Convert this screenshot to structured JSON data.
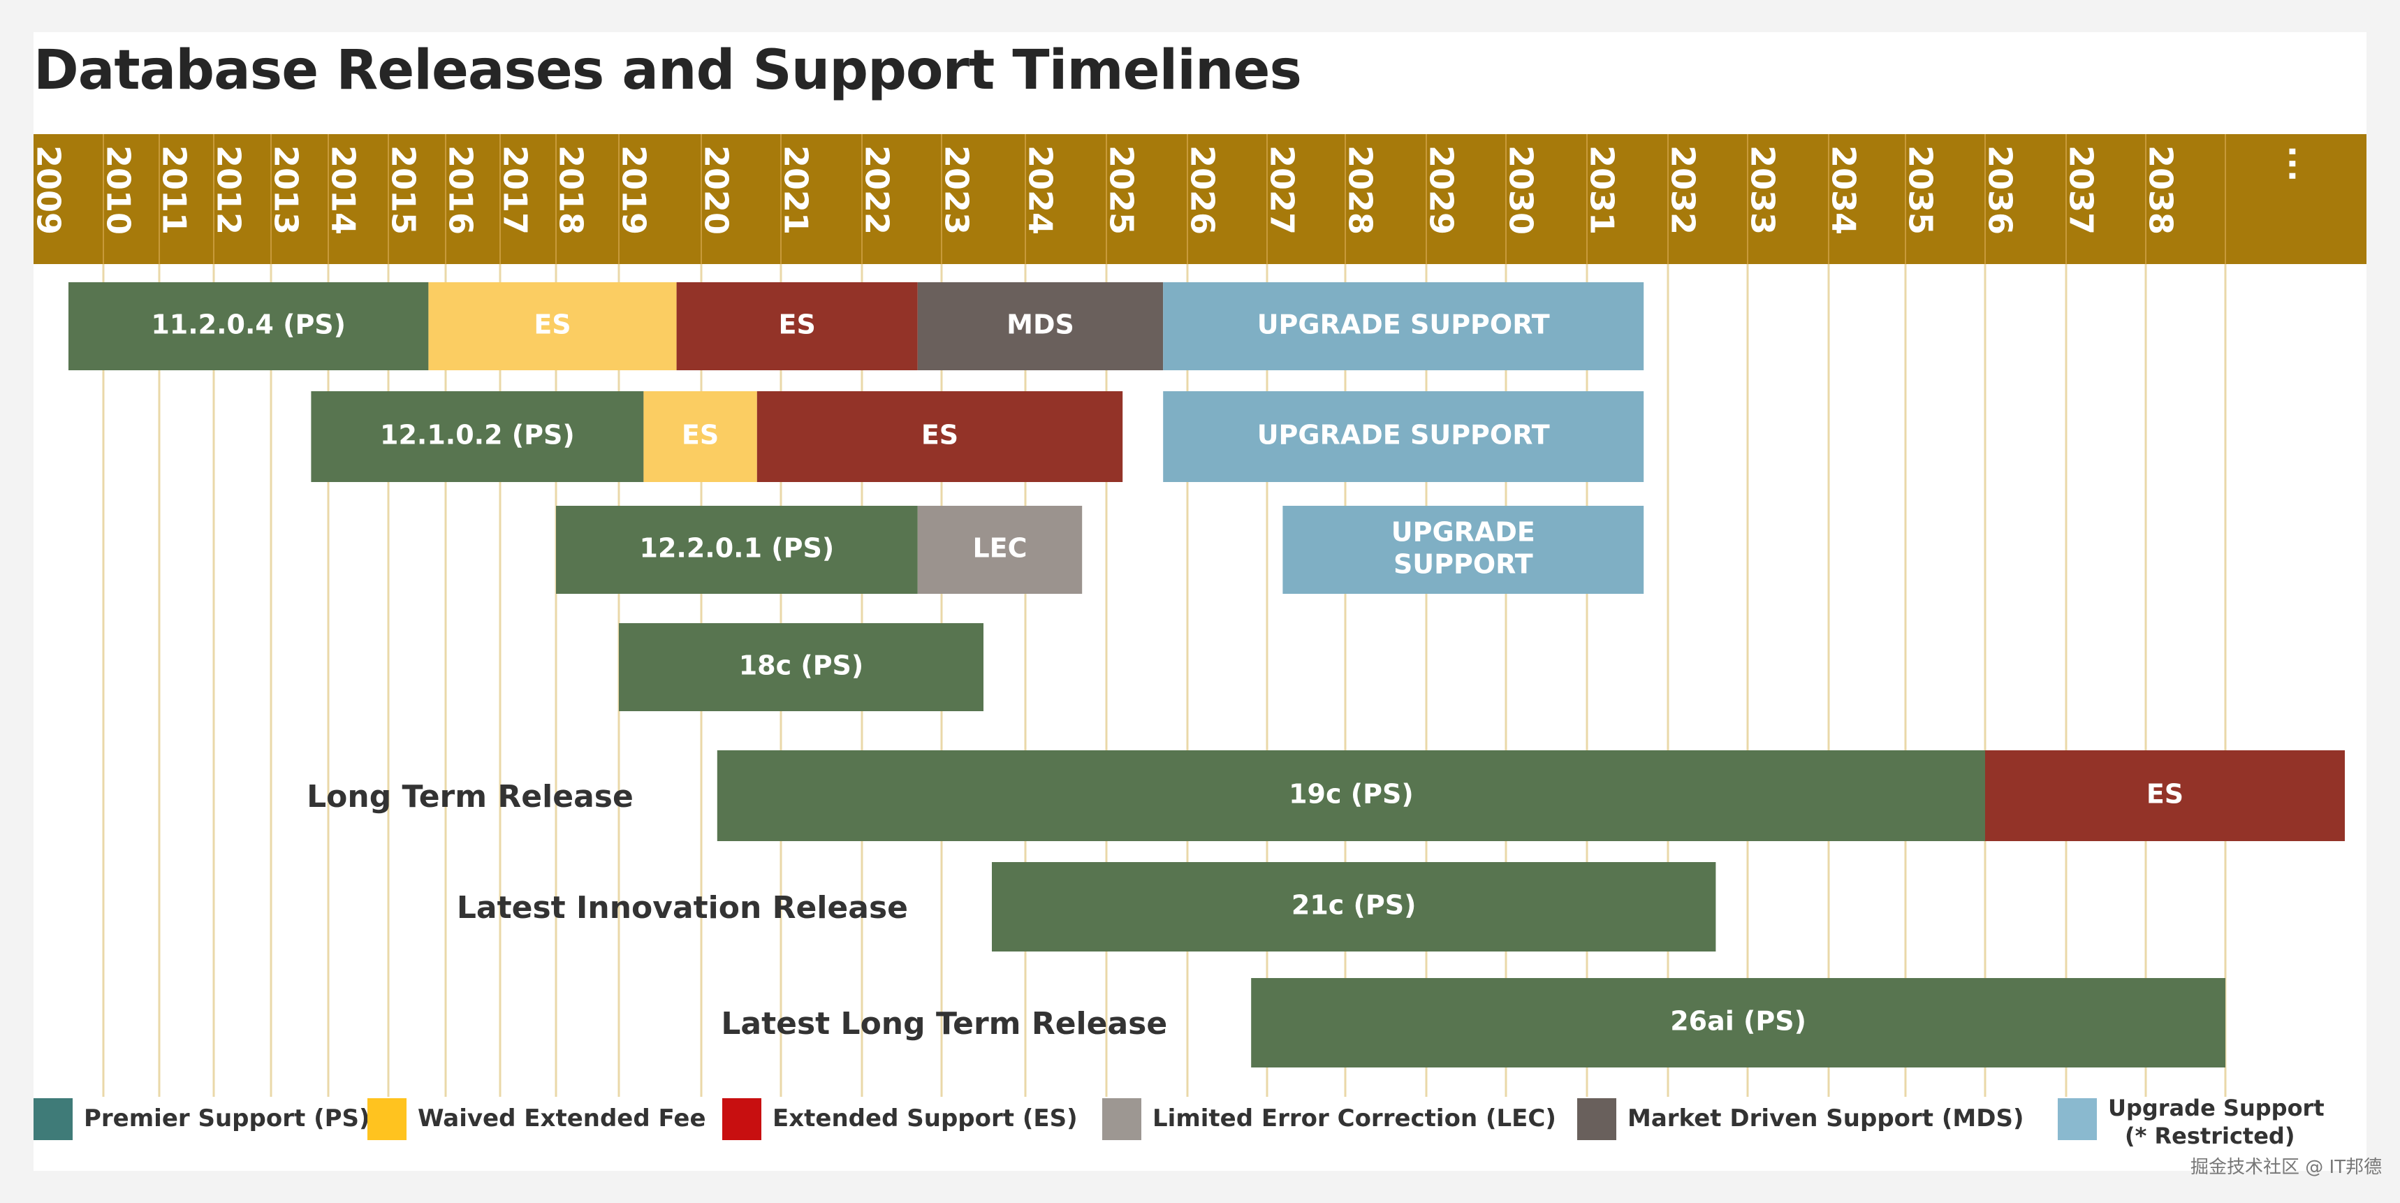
{
  "watermark": "掘金技术社区 @ IT邦德",
  "chart_data": {
    "type": "timeline",
    "title": "Database Releases and Support Timelines",
    "years": [
      "2009",
      "2010",
      "2011",
      "2012",
      "2013",
      "2014",
      "2015",
      "2016",
      "2017",
      "2018",
      "2019",
      "2020",
      "2021",
      "2022",
      "2023",
      "2024",
      "2025",
      "2026",
      "2027",
      "2028",
      "2029",
      "2030",
      "2031",
      "2032",
      "2033",
      "2034",
      "2035",
      "2036",
      "2037",
      "2038"
    ],
    "more_label": "...",
    "rows": [
      {
        "label": "",
        "segments": [
          {
            "text": "11.2.0.4 (PS)",
            "type": "PS",
            "start": 2009.5,
            "end": 2015.7
          },
          {
            "text": "ES",
            "type": "WEF",
            "start": 2015.7,
            "end": 2019.7
          },
          {
            "text": "ES",
            "type": "ES",
            "start": 2019.7,
            "end": 2022.7
          },
          {
            "text": "MDS",
            "type": "MDS",
            "start": 2022.7,
            "end": 2025.7
          },
          {
            "text": "UPGRADE SUPPORT",
            "type": "US",
            "start": 2025.7,
            "end": 2031.7
          }
        ]
      },
      {
        "label": "",
        "segments": [
          {
            "text": "12.1.0.2 (PS)",
            "type": "PS",
            "start": 2013.7,
            "end": 2019.3
          },
          {
            "text": "ES",
            "type": "WEF",
            "start": 2019.3,
            "end": 2020.7
          },
          {
            "text": "ES",
            "type": "ES",
            "start": 2020.7,
            "end": 2025.2
          },
          {
            "text": "UPGRADE SUPPORT",
            "type": "US",
            "start": 2025.7,
            "end": 2031.7
          }
        ]
      },
      {
        "label": "",
        "segments": [
          {
            "text": "12.2.0.1 (PS)",
            "type": "PS",
            "start": 2018.0,
            "end": 2022.7
          },
          {
            "text": "LEC",
            "type": "LEC",
            "start": 2022.7,
            "end": 2024.7
          },
          {
            "text": "UPGRADE\nSUPPORT",
            "type": "US",
            "start": 2027.2,
            "end": 2031.7
          }
        ]
      },
      {
        "label": "",
        "segments": [
          {
            "text": "18c (PS)",
            "type": "PS",
            "start": 2019.0,
            "end": 2023.5
          }
        ]
      },
      {
        "label": "Long Term Release",
        "segments": [
          {
            "text": "19c (PS)",
            "type": "PS",
            "start": 2020.2,
            "end": 2036.0
          },
          {
            "text": "ES",
            "type": "ES",
            "start": 2036.0,
            "end": 2040.5
          }
        ]
      },
      {
        "label": "Latest Innovation Release",
        "segments": [
          {
            "text": "21c (PS)",
            "type": "PS",
            "start": 2023.6,
            "end": 2032.6
          }
        ]
      },
      {
        "label": "Latest Long Term Release",
        "segments": [
          {
            "text": "26ai (PS)",
            "type": "PS",
            "start": 2026.8,
            "end": 2039.0
          }
        ]
      }
    ],
    "colors": {
      "PS": "#587550",
      "WEF": "#fbcd62",
      "ES": "#933328",
      "LEC": "#9b938e",
      "MDS": "#6a605c",
      "US": "#7fafc4",
      "header": "#a77a0b",
      "gridline": "#ead8a8"
    },
    "legend": [
      {
        "label": "Premier Support (PS)",
        "color": "#3f7b78"
      },
      {
        "label": "Waived Extended Fee",
        "color": "#ffc31f"
      },
      {
        "label": "Extended Support (ES)",
        "color": "#c80f10"
      },
      {
        "label": "Limited Error Correction (LEC)",
        "color": "#9d9792"
      },
      {
        "label": "Market Driven Support (MDS)",
        "color": "#69605c"
      },
      {
        "label": "Upgrade Support\n(* Restricted)",
        "color": "#8ab9cf"
      }
    ]
  }
}
